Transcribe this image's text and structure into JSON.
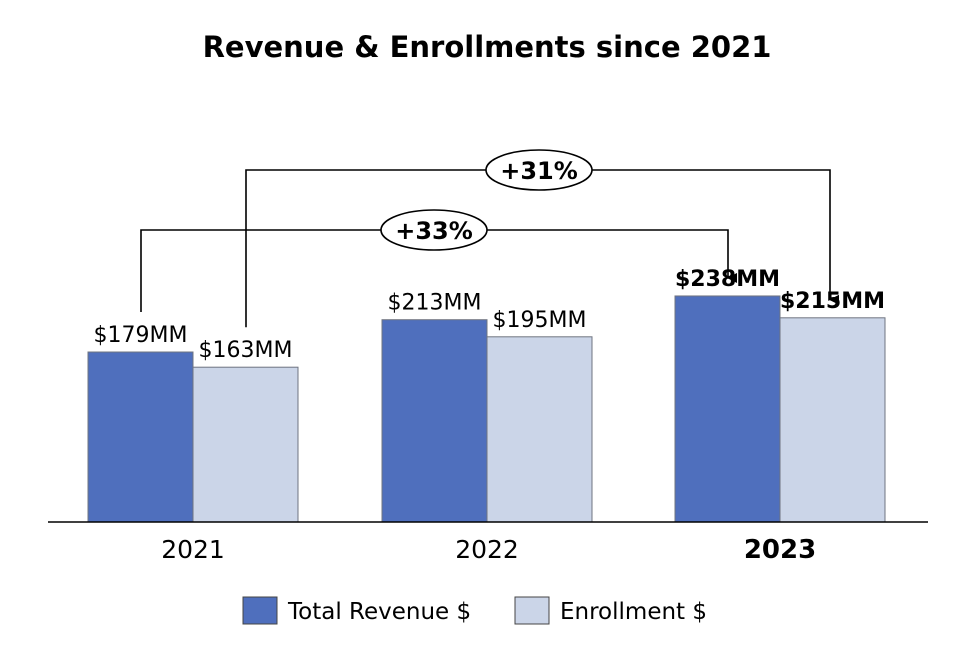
{
  "chart_data": {
    "type": "bar",
    "title": "Revenue & Enrollments since 2021",
    "categories": [
      "2021",
      "2022",
      "2023"
    ],
    "highlight_category": "2023",
    "series": [
      {
        "name": "Total Revenue $",
        "color": "#4f6fbd",
        "values": [
          179,
          213,
          238
        ],
        "labels": [
          "$179MM",
          "$213MM",
          "$238MM"
        ]
      },
      {
        "name": "Enrollment $",
        "color": "#cbd5e8",
        "values": [
          163,
          195,
          215
        ],
        "labels": [
          "$163MM",
          "$195MM",
          "$215MM"
        ]
      }
    ],
    "ylim": [
      0,
      300
    ],
    "grid": false,
    "legend": "bottom",
    "annotations": [
      {
        "text": "+31%",
        "series": "Enrollment $",
        "from": "2021",
        "to": "2023"
      },
      {
        "text": "+33%",
        "series": "Total Revenue $",
        "from": "2021",
        "to": "2023"
      }
    ]
  }
}
